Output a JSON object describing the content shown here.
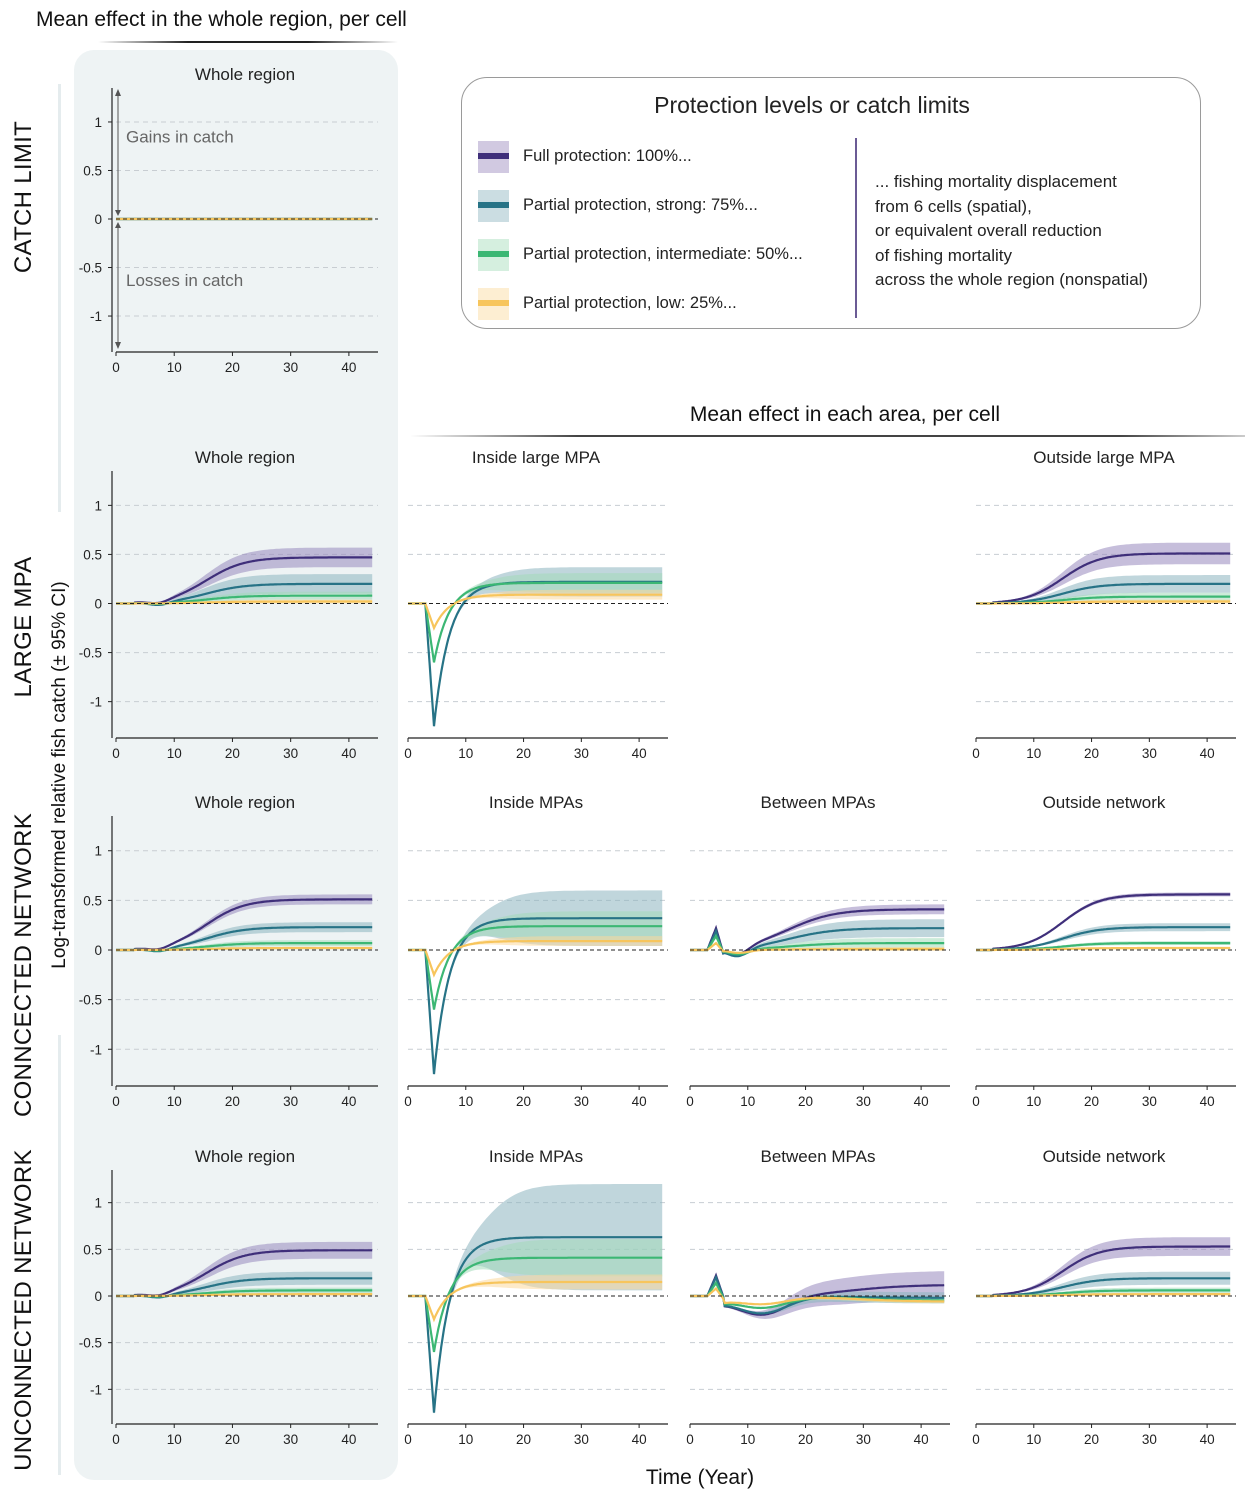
{
  "headers": {
    "top": "Mean effect in the whole region, per cell",
    "middle": "Mean effect in each area, per cell"
  },
  "row_labels": [
    "CATCH LIMIT",
    "LARGE MPA",
    "CONNCECTED NETWORK",
    "UNCONNECTED NETWORK"
  ],
  "y_axis_label": "Log-transformed relative fish catch (± 95% CI)",
  "x_axis_label": "Time (Year)",
  "legend": {
    "title": "Protection levels or catch limits",
    "items": [
      {
        "label": "Full protection: 100%...",
        "color": "#3f2f7a",
        "band": "#9888bd"
      },
      {
        "label": "Partial protection, strong: 75%...",
        "color": "#277386",
        "band": "#8cb4bf"
      },
      {
        "label": "Partial protection, intermediate: 50%...",
        "color": "#3cb774",
        "band": "#a2dbb9"
      },
      {
        "label": "Partial protection, low: 25%...",
        "color": "#f7c55c",
        "band": "#fbd99c"
      }
    ],
    "note_lines": [
      "... fishing mortality displacement",
      "from 6 cells (spatial),",
      "or equivalent overall reduction",
      "of fishing mortality",
      "across the whole region (nonspatial)"
    ]
  },
  "annotations": {
    "gains": "Gains in catch",
    "losses": "Losses in catch"
  },
  "chart_data": [
    {
      "id": "catch_whole",
      "row": "CATCH LIMIT",
      "type": "line",
      "title": "Whole region",
      "xlim": [
        0,
        45
      ],
      "ylim": [
        -1.35,
        1.35
      ],
      "xticks": [
        0,
        10,
        20,
        30,
        40
      ],
      "yticks": [
        1,
        0.5,
        0,
        -0.5,
        -1
      ],
      "series": [
        {
          "level": "100%",
          "final": 0,
          "dip": 0,
          "shape": "flat"
        },
        {
          "level": "75%",
          "final": 0,
          "dip": 0,
          "shape": "flat"
        },
        {
          "level": "50%",
          "final": 0,
          "dip": 0,
          "shape": "flat"
        },
        {
          "level": "25%",
          "final": 0,
          "dip": 0,
          "shape": "flat"
        }
      ]
    },
    {
      "id": "large_whole",
      "row": "LARGE MPA",
      "type": "line",
      "title": "Whole region",
      "xlim": [
        0,
        45
      ],
      "ylim": [
        -1.35,
        1.35
      ],
      "xticks": [
        0,
        10,
        20,
        30,
        40
      ],
      "yticks": [
        1,
        0.5,
        0,
        -0.5,
        -1
      ],
      "series": [
        {
          "level": "100%",
          "final": 0.47,
          "ci": 0.1,
          "dip": -0.03,
          "shape": "whole"
        },
        {
          "level": "75%",
          "final": 0.2,
          "ci": 0.1,
          "dip": -0.03,
          "shape": "whole"
        },
        {
          "level": "50%",
          "final": 0.08,
          "ci": 0.04,
          "dip": -0.01,
          "shape": "whole"
        },
        {
          "level": "25%",
          "final": 0.02,
          "ci": 0.02,
          "dip": 0,
          "shape": "whole"
        }
      ]
    },
    {
      "id": "large_inside",
      "row": "LARGE MPA",
      "type": "line",
      "title": "Inside large MPA",
      "xlim": [
        0,
        45
      ],
      "ylim": [
        -1.35,
        1.35
      ],
      "xticks": [
        0,
        10,
        20,
        30,
        40
      ],
      "series": [
        {
          "level": "75%",
          "final": 0.22,
          "ci": 0.15,
          "dip": -1.25,
          "shape": "inside"
        },
        {
          "level": "50%",
          "final": 0.21,
          "ci": 0.1,
          "dip": -0.6,
          "shape": "inside"
        },
        {
          "level": "25%",
          "final": 0.09,
          "ci": 0.05,
          "dip": -0.25,
          "shape": "inside"
        }
      ]
    },
    {
      "id": "large_outside",
      "row": "LARGE MPA",
      "type": "line",
      "title": "Outside large MPA",
      "xlim": [
        0,
        45
      ],
      "ylim": [
        -1.35,
        1.35
      ],
      "xticks": [
        0,
        10,
        20,
        30,
        40
      ],
      "series": [
        {
          "level": "100%",
          "final": 0.51,
          "ci": 0.11,
          "dip": 0,
          "shape": "outside"
        },
        {
          "level": "75%",
          "final": 0.2,
          "ci": 0.09,
          "dip": 0,
          "shape": "outside"
        },
        {
          "level": "50%",
          "final": 0.07,
          "ci": 0.04,
          "dip": 0,
          "shape": "outside"
        },
        {
          "level": "25%",
          "final": 0.02,
          "ci": 0.02,
          "dip": 0,
          "shape": "outside"
        }
      ]
    },
    {
      "id": "conn_whole",
      "row": "CONNCECTED NETWORK",
      "type": "line",
      "title": "Whole region",
      "xlim": [
        0,
        45
      ],
      "ylim": [
        -1.35,
        1.35
      ],
      "xticks": [
        0,
        10,
        20,
        30,
        40
      ],
      "yticks": [
        1,
        0.5,
        0,
        -0.5,
        -1
      ],
      "series": [
        {
          "level": "100%",
          "final": 0.51,
          "ci": 0.05,
          "dip": -0.03,
          "shape": "whole"
        },
        {
          "level": "75%",
          "final": 0.23,
          "ci": 0.05,
          "dip": -0.03,
          "shape": "whole"
        },
        {
          "level": "50%",
          "final": 0.07,
          "ci": 0.03,
          "dip": -0.01,
          "shape": "whole"
        },
        {
          "level": "25%",
          "final": 0.02,
          "ci": 0.01,
          "dip": 0,
          "shape": "whole"
        }
      ]
    },
    {
      "id": "conn_inside",
      "row": "CONNCECTED NETWORK",
      "type": "line",
      "title": "Inside MPAs",
      "xlim": [
        0,
        45
      ],
      "ylim": [
        -1.35,
        1.35
      ],
      "xticks": [
        0,
        10,
        20,
        30,
        40
      ],
      "series": [
        {
          "level": "75%",
          "final": 0.32,
          "ci": 0.28,
          "dip": -1.25,
          "shape": "inside"
        },
        {
          "level": "50%",
          "final": 0.24,
          "ci": 0.15,
          "dip": -0.6,
          "shape": "inside"
        },
        {
          "level": "25%",
          "final": 0.09,
          "ci": 0.05,
          "dip": -0.25,
          "shape": "inside"
        }
      ]
    },
    {
      "id": "conn_between",
      "row": "CONNCECTED NETWORK",
      "type": "line",
      "title": "Between MPAs",
      "xlim": [
        0,
        45
      ],
      "ylim": [
        -1.35,
        1.35
      ],
      "xticks": [
        0,
        10,
        20,
        30,
        40
      ],
      "series": [
        {
          "level": "100%",
          "final": 0.41,
          "ci": 0.05,
          "peak": 0.22,
          "dip": -0.08,
          "shape": "between"
        },
        {
          "level": "75%",
          "final": 0.22,
          "ci": 0.09,
          "peak": 0.19,
          "dip": -0.08,
          "shape": "between"
        },
        {
          "level": "50%",
          "final": 0.07,
          "ci": 0.05,
          "peak": 0.14,
          "dip": -0.05,
          "shape": "between"
        },
        {
          "level": "25%",
          "final": 0.01,
          "ci": 0.02,
          "peak": 0.07,
          "dip": -0.03,
          "shape": "between"
        }
      ]
    },
    {
      "id": "conn_outside",
      "row": "CONNCECTED NETWORK",
      "type": "line",
      "title": "Outside network",
      "xlim": [
        0,
        45
      ],
      "ylim": [
        -1.35,
        1.35
      ],
      "xticks": [
        0,
        10,
        20,
        30,
        40
      ],
      "series": [
        {
          "level": "100%",
          "final": 0.56,
          "ci": 0.02,
          "dip": 0,
          "shape": "outside"
        },
        {
          "level": "75%",
          "final": 0.23,
          "ci": 0.04,
          "dip": 0,
          "shape": "outside"
        },
        {
          "level": "50%",
          "final": 0.07,
          "ci": 0.02,
          "dip": 0,
          "shape": "outside"
        },
        {
          "level": "25%",
          "final": 0.02,
          "ci": 0.01,
          "dip": 0,
          "shape": "outside"
        }
      ]
    },
    {
      "id": "unconn_whole",
      "row": "UNCONNECTED NETWORK",
      "type": "line",
      "title": "Whole region",
      "xlim": [
        0,
        45
      ],
      "ylim": [
        -1.35,
        1.35
      ],
      "xticks": [
        0,
        10,
        20,
        30,
        40
      ],
      "yticks": [
        1,
        0.5,
        0,
        -0.5,
        -1
      ],
      "series": [
        {
          "level": "100%",
          "final": 0.49,
          "ci": 0.09,
          "dip": -0.03,
          "shape": "whole"
        },
        {
          "level": "75%",
          "final": 0.19,
          "ci": 0.07,
          "dip": -0.03,
          "shape": "whole"
        },
        {
          "level": "50%",
          "final": 0.06,
          "ci": 0.03,
          "dip": -0.01,
          "shape": "whole"
        },
        {
          "level": "25%",
          "final": 0.02,
          "ci": 0.01,
          "dip": 0,
          "shape": "whole"
        }
      ]
    },
    {
      "id": "unconn_inside",
      "row": "UNCONNECTED NETWORK",
      "type": "line",
      "title": "Inside MPAs",
      "xlim": [
        0,
        45
      ],
      "ylim": [
        -1.35,
        1.35
      ],
      "xticks": [
        0,
        10,
        20,
        30,
        40
      ],
      "series": [
        {
          "level": "75%",
          "final": 0.63,
          "ci": 0.57,
          "dip": -1.25,
          "shape": "inside"
        },
        {
          "level": "50%",
          "final": 0.41,
          "ci": 0.2,
          "dip": -0.6,
          "shape": "inside"
        },
        {
          "level": "25%",
          "final": 0.15,
          "ci": 0.08,
          "dip": -0.25,
          "shape": "inside"
        }
      ]
    },
    {
      "id": "unconn_between",
      "row": "UNCONNECTED NETWORK",
      "type": "line",
      "title": "Between MPAs",
      "xlim": [
        0,
        45
      ],
      "ylim": [
        -1.35,
        1.35
      ],
      "xticks": [
        0,
        10,
        20,
        30,
        40
      ],
      "series": [
        {
          "level": "100%",
          "final": 0.12,
          "ci": 0.15,
          "peak": 0.22,
          "dip": -0.2,
          "shape": "between2"
        },
        {
          "level": "75%",
          "final": -0.02,
          "ci": 0.06,
          "peak": 0.2,
          "dip": -0.18,
          "shape": "between2"
        },
        {
          "level": "50%",
          "final": -0.05,
          "ci": 0.03,
          "peak": 0.14,
          "dip": -0.12,
          "shape": "between2"
        },
        {
          "level": "25%",
          "final": -0.06,
          "ci": 0.02,
          "peak": 0.08,
          "dip": -0.08,
          "shape": "between2"
        }
      ]
    },
    {
      "id": "unconn_outside",
      "row": "UNCONNECTED NETWORK",
      "type": "line",
      "title": "Outside network",
      "xlim": [
        0,
        45
      ],
      "ylim": [
        -1.35,
        1.35
      ],
      "xticks": [
        0,
        10,
        20,
        30,
        40
      ],
      "series": [
        {
          "level": "100%",
          "final": 0.53,
          "ci": 0.1,
          "dip": 0,
          "shape": "outside"
        },
        {
          "level": "75%",
          "final": 0.19,
          "ci": 0.07,
          "dip": 0,
          "shape": "outside"
        },
        {
          "level": "50%",
          "final": 0.06,
          "ci": 0.03,
          "dip": 0,
          "shape": "outside"
        },
        {
          "level": "25%",
          "final": 0.02,
          "ci": 0.01,
          "dip": 0,
          "shape": "outside"
        }
      ]
    }
  ]
}
